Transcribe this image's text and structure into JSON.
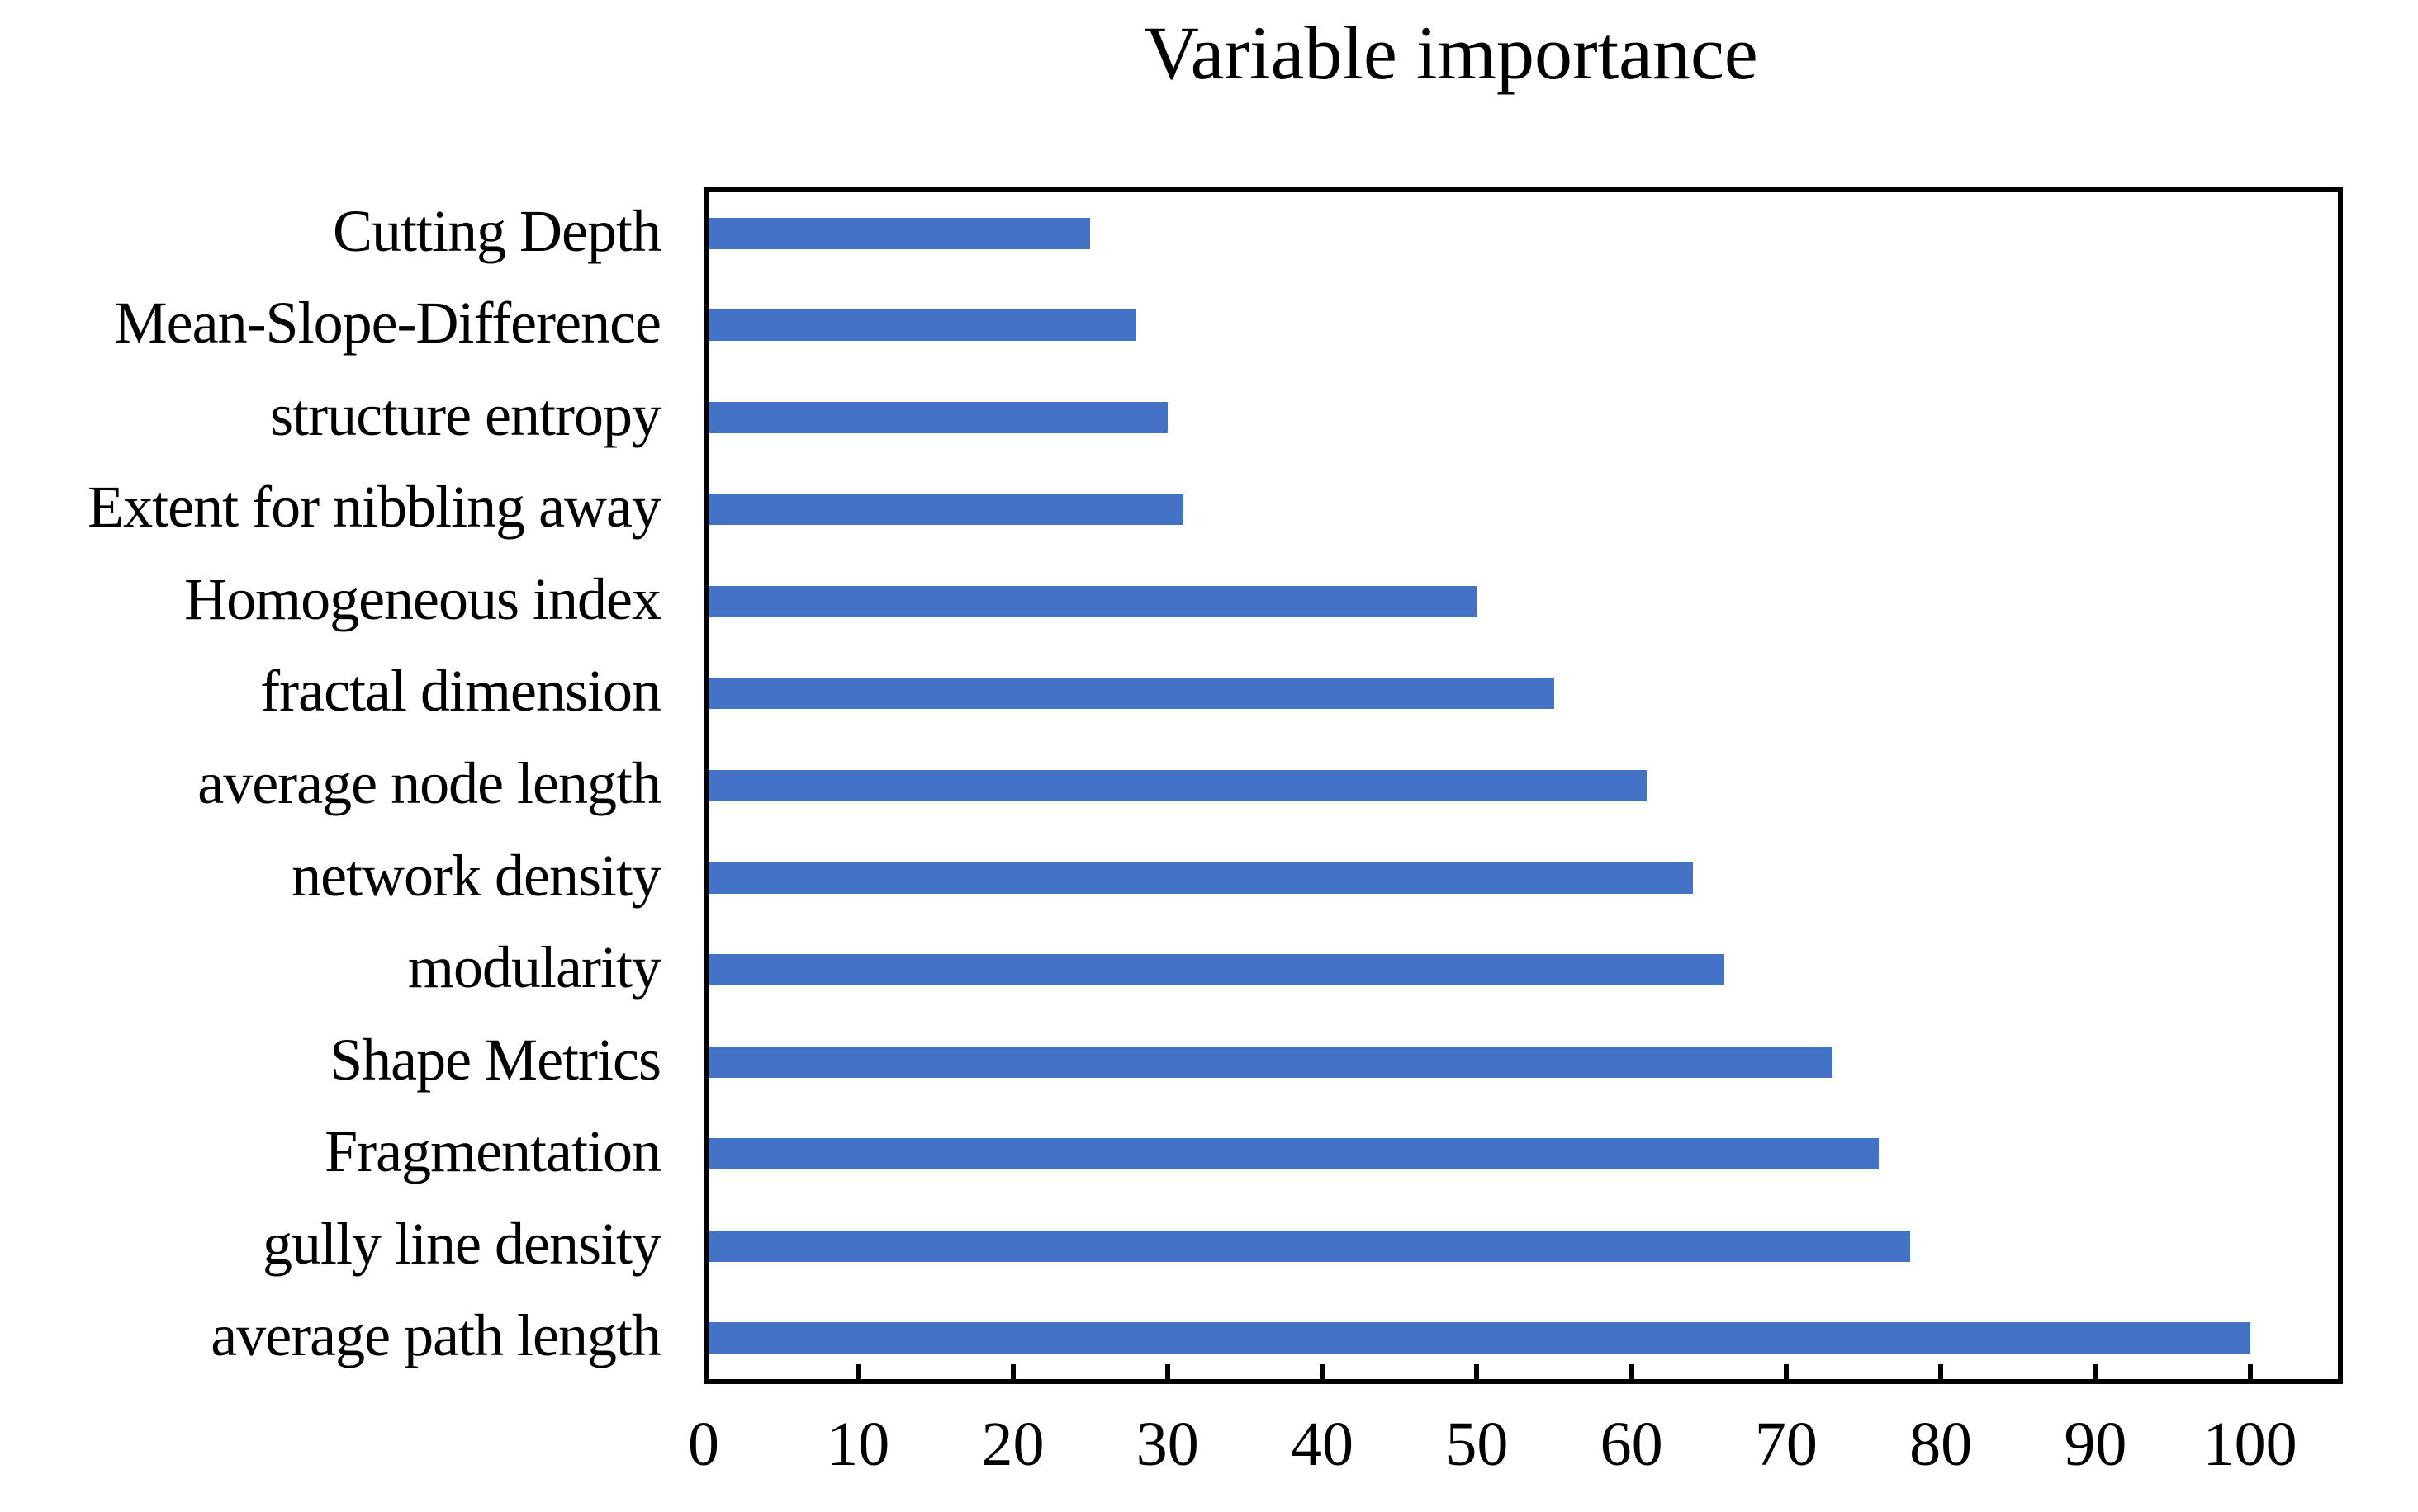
{
  "title": "Variable importance",
  "chart_data": {
    "type": "bar",
    "orientation": "horizontal",
    "title": "Variable importance",
    "categories": [
      "Cutting Depth",
      "Mean-Slope-Difference",
      "structure entropy",
      "Extent for nibbling away",
      "Homogeneous index",
      "fractal dimension",
      "average node length",
      "network density",
      "modularity",
      "Shape Metrics",
      "Fragmentation",
      "gully line density",
      "average path length"
    ],
    "values": [
      25,
      28,
      30,
      31,
      50,
      55,
      61,
      64,
      66,
      73,
      76,
      78,
      100
    ],
    "xticks": [
      0,
      10,
      20,
      30,
      40,
      50,
      60,
      70,
      80,
      90,
      100
    ],
    "xlim": [
      0,
      106
    ],
    "xlabel": "",
    "ylabel": "",
    "bar_color": "#4472C4",
    "axis_color": "#000000",
    "background": "#FFFFFF",
    "grid": false,
    "legend_position": "none"
  }
}
